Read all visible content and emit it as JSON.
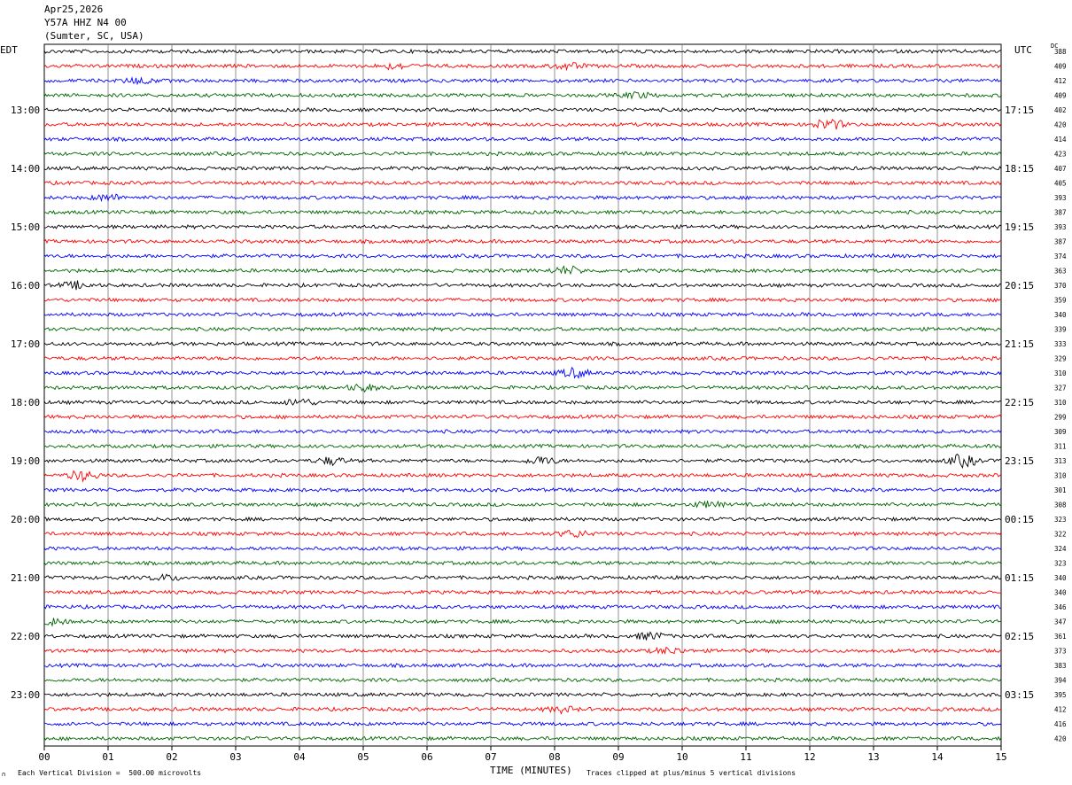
{
  "header": {
    "date": "Apr25,2026",
    "station": "Y57A HHZ N4 00",
    "location": "(Sumter, SC, USA)"
  },
  "timezone_left": "EDT",
  "timezone_right": "UTC",
  "dc_label": "DC",
  "footer": {
    "division_note": "Each Vertical Division =  500.00 microvolts",
    "clip_note": "Traces clipped at plus/minus 5 vertical divisions",
    "corner_mark": "∩"
  },
  "chart_data": {
    "type": "line",
    "title": "Apr25,2026",
    "xlabel": "TIME (MINUTES)",
    "xlim": [
      0,
      15
    ],
    "x_ticks": [
      "00",
      "01",
      "02",
      "03",
      "04",
      "05",
      "06",
      "07",
      "08",
      "09",
      "10",
      "11",
      "12",
      "13",
      "14",
      "15"
    ],
    "trace_colors": [
      "#000000",
      "#ff0000",
      "#0000ff",
      "#006600"
    ],
    "left_hour_labels": [
      "13:00",
      "14:00",
      "15:00",
      "16:00",
      "17:00",
      "18:00",
      "19:00",
      "20:00",
      "21:00",
      "22:00",
      "23:00"
    ],
    "right_hour_labels": [
      "17:15",
      "18:15",
      "19:15",
      "20:15",
      "21:15",
      "22:15",
      "23:15",
      "00:15",
      "01:15",
      "02:15",
      "03:15"
    ],
    "dc_offsets": [
      388,
      409,
      412,
      409,
      402,
      420,
      414,
      423,
      407,
      405,
      393,
      387,
      393,
      387,
      374,
      363,
      370,
      359,
      340,
      339,
      333,
      329,
      310,
      327,
      310,
      299,
      309,
      311,
      313,
      310,
      301,
      308,
      323,
      322,
      324,
      323,
      340,
      340,
      346,
      347,
      361,
      373,
      383,
      394,
      395,
      412,
      416,
      420
    ],
    "trace_count": 48,
    "event_bursts": [
      {
        "trace": 1,
        "minute": 5.5,
        "amp": 1.6
      },
      {
        "trace": 1,
        "minute": 8.2,
        "amp": 1.8
      },
      {
        "trace": 2,
        "minute": 1.5,
        "amp": 1.7
      },
      {
        "trace": 3,
        "minute": 9.3,
        "amp": 1.5
      },
      {
        "trace": 5,
        "minute": 12.3,
        "amp": 3.0
      },
      {
        "trace": 10,
        "minute": 1.0,
        "amp": 1.8
      },
      {
        "trace": 15,
        "minute": 8.2,
        "amp": 2.2
      },
      {
        "trace": 16,
        "minute": 0.5,
        "amp": 1.8
      },
      {
        "trace": 22,
        "minute": 8.3,
        "amp": 2.4
      },
      {
        "trace": 23,
        "minute": 5.0,
        "amp": 1.8
      },
      {
        "trace": 24,
        "minute": 4.0,
        "amp": 1.9
      },
      {
        "trace": 28,
        "minute": 4.5,
        "amp": 2.0
      },
      {
        "trace": 28,
        "minute": 7.8,
        "amp": 2.2
      },
      {
        "trace": 28,
        "minute": 14.4,
        "amp": 3.2
      },
      {
        "trace": 29,
        "minute": 0.6,
        "amp": 2.6
      },
      {
        "trace": 31,
        "minute": 10.4,
        "amp": 1.6
      },
      {
        "trace": 33,
        "minute": 8.3,
        "amp": 2.0
      },
      {
        "trace": 36,
        "minute": 1.9,
        "amp": 1.6
      },
      {
        "trace": 39,
        "minute": 0.1,
        "amp": 1.8
      },
      {
        "trace": 40,
        "minute": 9.5,
        "amp": 2.0
      },
      {
        "trace": 41,
        "minute": 9.8,
        "amp": 1.6
      },
      {
        "trace": 45,
        "minute": 8.1,
        "amp": 1.5
      }
    ]
  }
}
